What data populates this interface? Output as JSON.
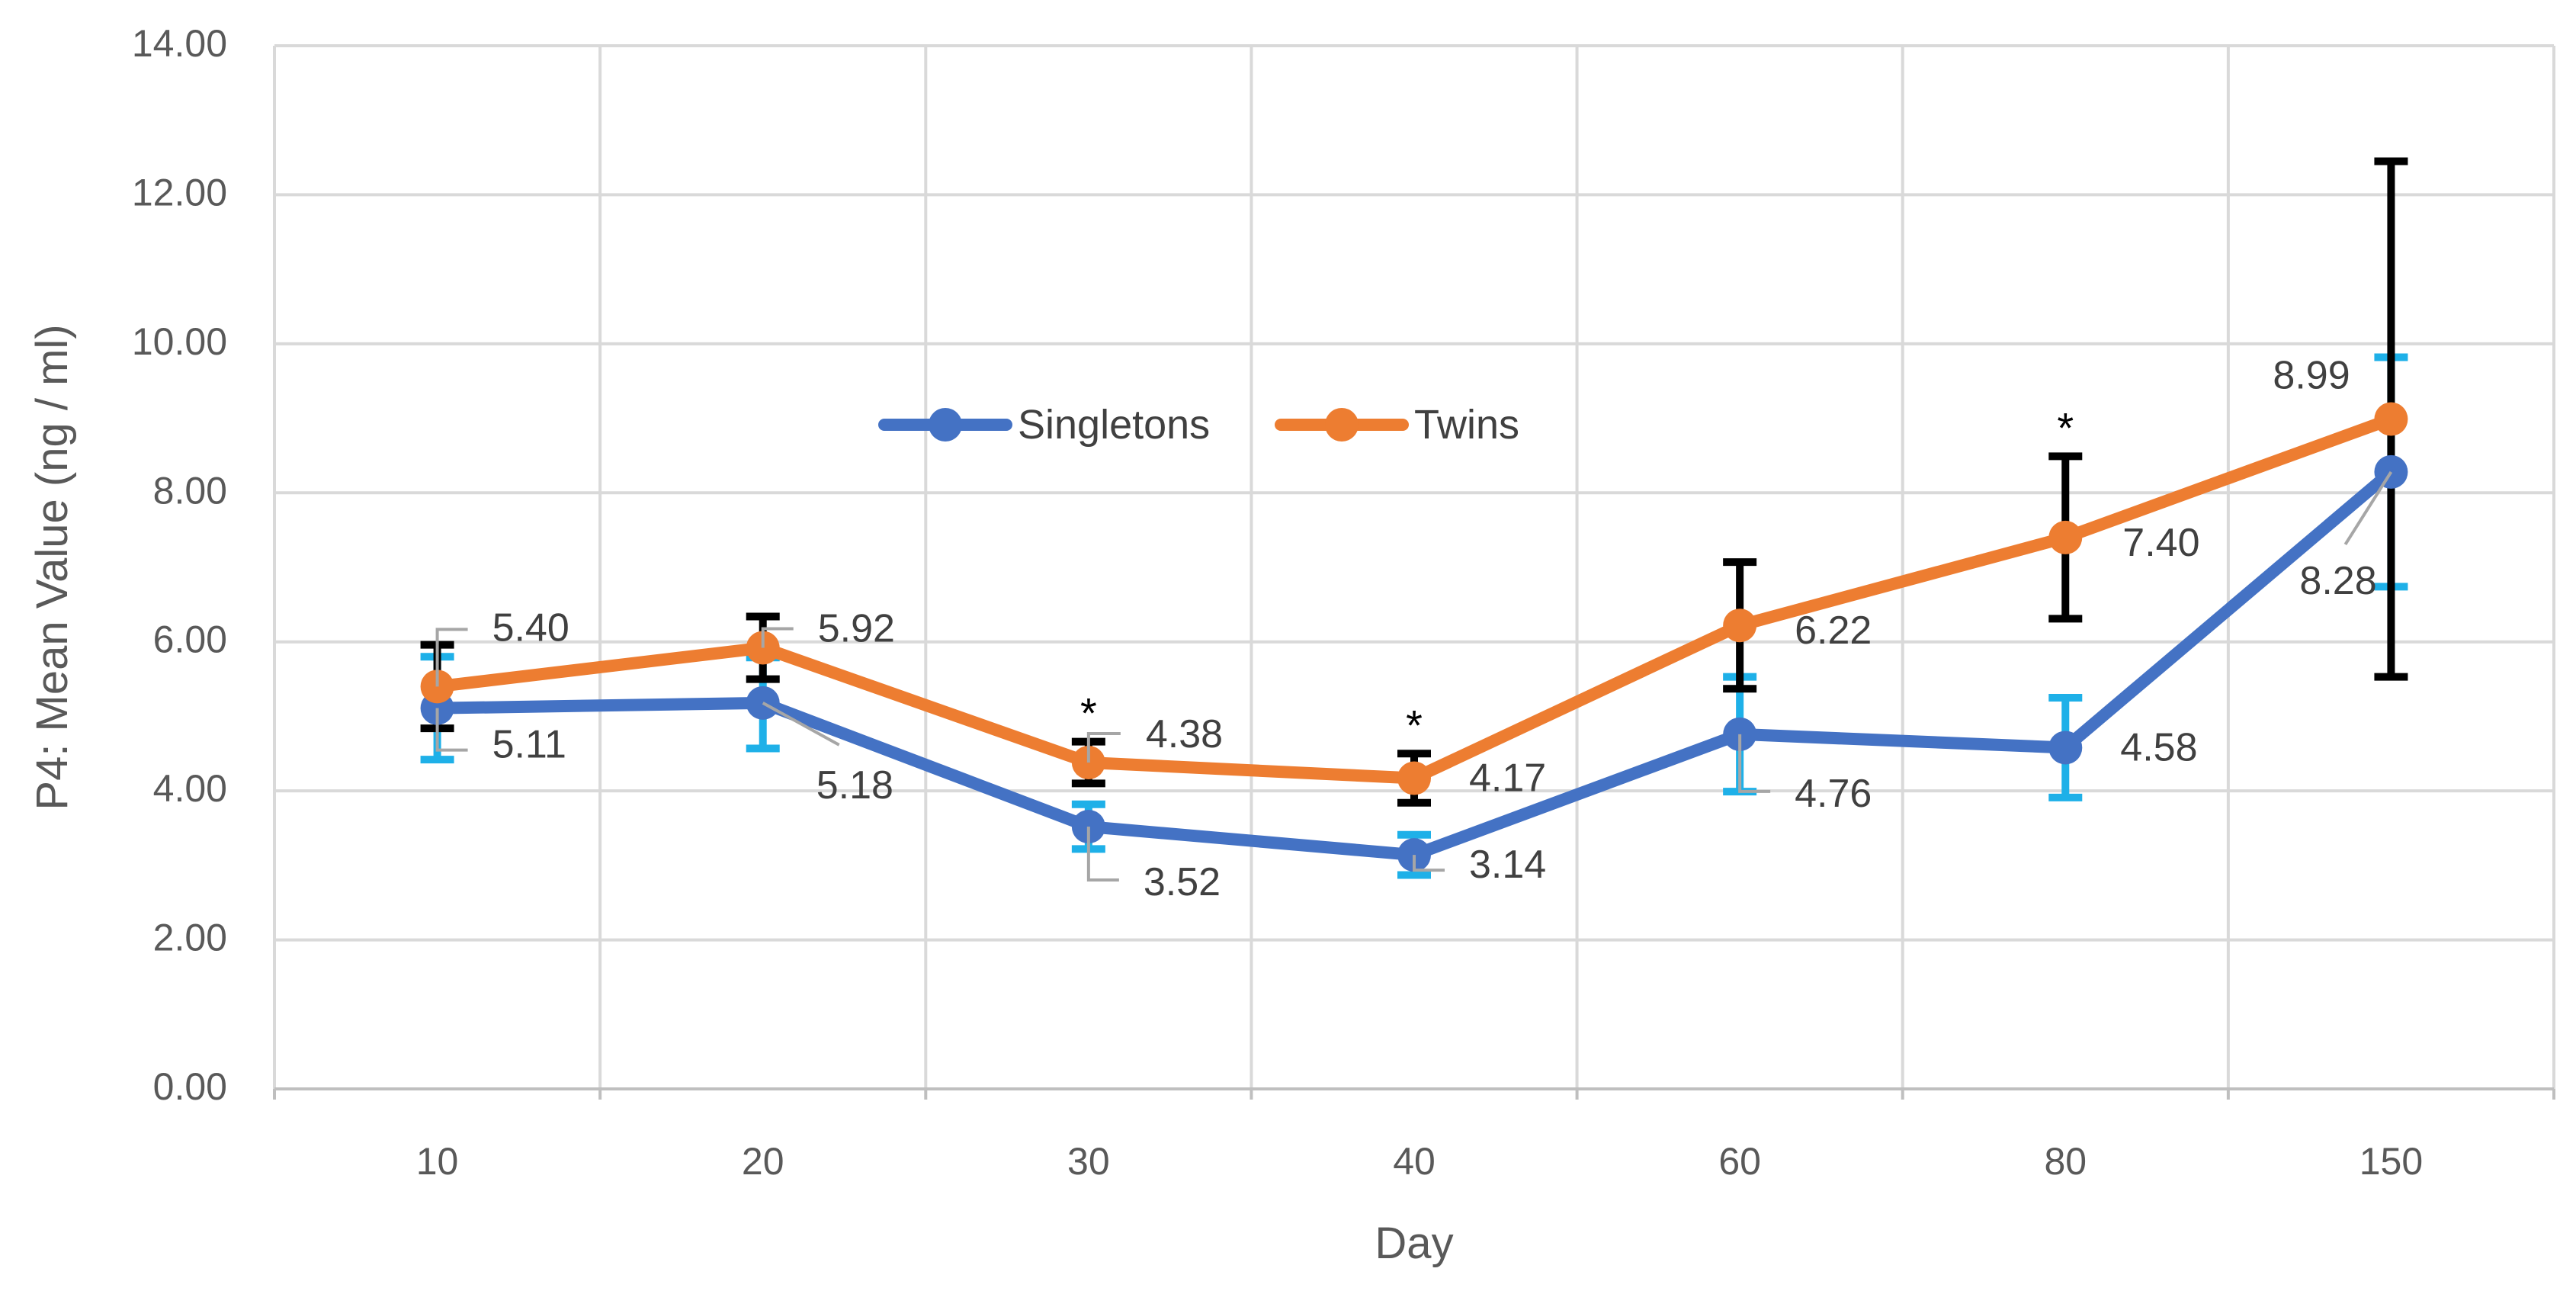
{
  "chart_data": {
    "type": "line",
    "title": "",
    "xlabel": "Day",
    "ylabel": "P4: Mean Value (ng / ml)",
    "categories": [
      "10",
      "20",
      "30",
      "40",
      "60",
      "80",
      "150"
    ],
    "ylim": [
      0,
      14
    ],
    "yticks": [
      "0.00",
      "2.00",
      "4.00",
      "6.00",
      "8.00",
      "10.00",
      "12.00",
      "14.00"
    ],
    "grid": true,
    "legend_position": "top-center",
    "series": [
      {
        "name": "Singletons",
        "color": "#4472C4",
        "errorbar_color": "#1EB0E8",
        "values": [
          5.11,
          5.18,
          3.52,
          3.14,
          4.76,
          4.58,
          8.28
        ],
        "labels": [
          "5.11",
          "5.18",
          "3.52",
          "3.14",
          "4.76",
          "4.58",
          "8.28"
        ],
        "err_low": [
          4.42,
          4.57,
          3.22,
          2.87,
          3.99,
          3.91,
          6.74
        ],
        "err_high": [
          5.8,
          5.79,
          3.82,
          3.41,
          5.53,
          5.25,
          9.82
        ]
      },
      {
        "name": "Twins",
        "color": "#ED7D31",
        "errorbar_color": "#000000",
        "values": [
          5.4,
          5.92,
          4.38,
          4.17,
          6.22,
          7.4,
          8.99
        ],
        "labels": [
          "5.40",
          "5.92",
          "4.38",
          "4.17",
          "6.22",
          "7.40",
          "8.99"
        ],
        "err_low": [
          4.84,
          5.5,
          4.1,
          3.84,
          5.37,
          6.31,
          5.53
        ],
        "err_high": [
          5.96,
          6.34,
          4.66,
          4.5,
          7.07,
          8.49,
          12.45
        ]
      }
    ],
    "significance_markers": [
      {
        "category": "30",
        "symbol": "*"
      },
      {
        "category": "40",
        "symbol": "*"
      },
      {
        "category": "80",
        "symbol": "*"
      }
    ]
  }
}
